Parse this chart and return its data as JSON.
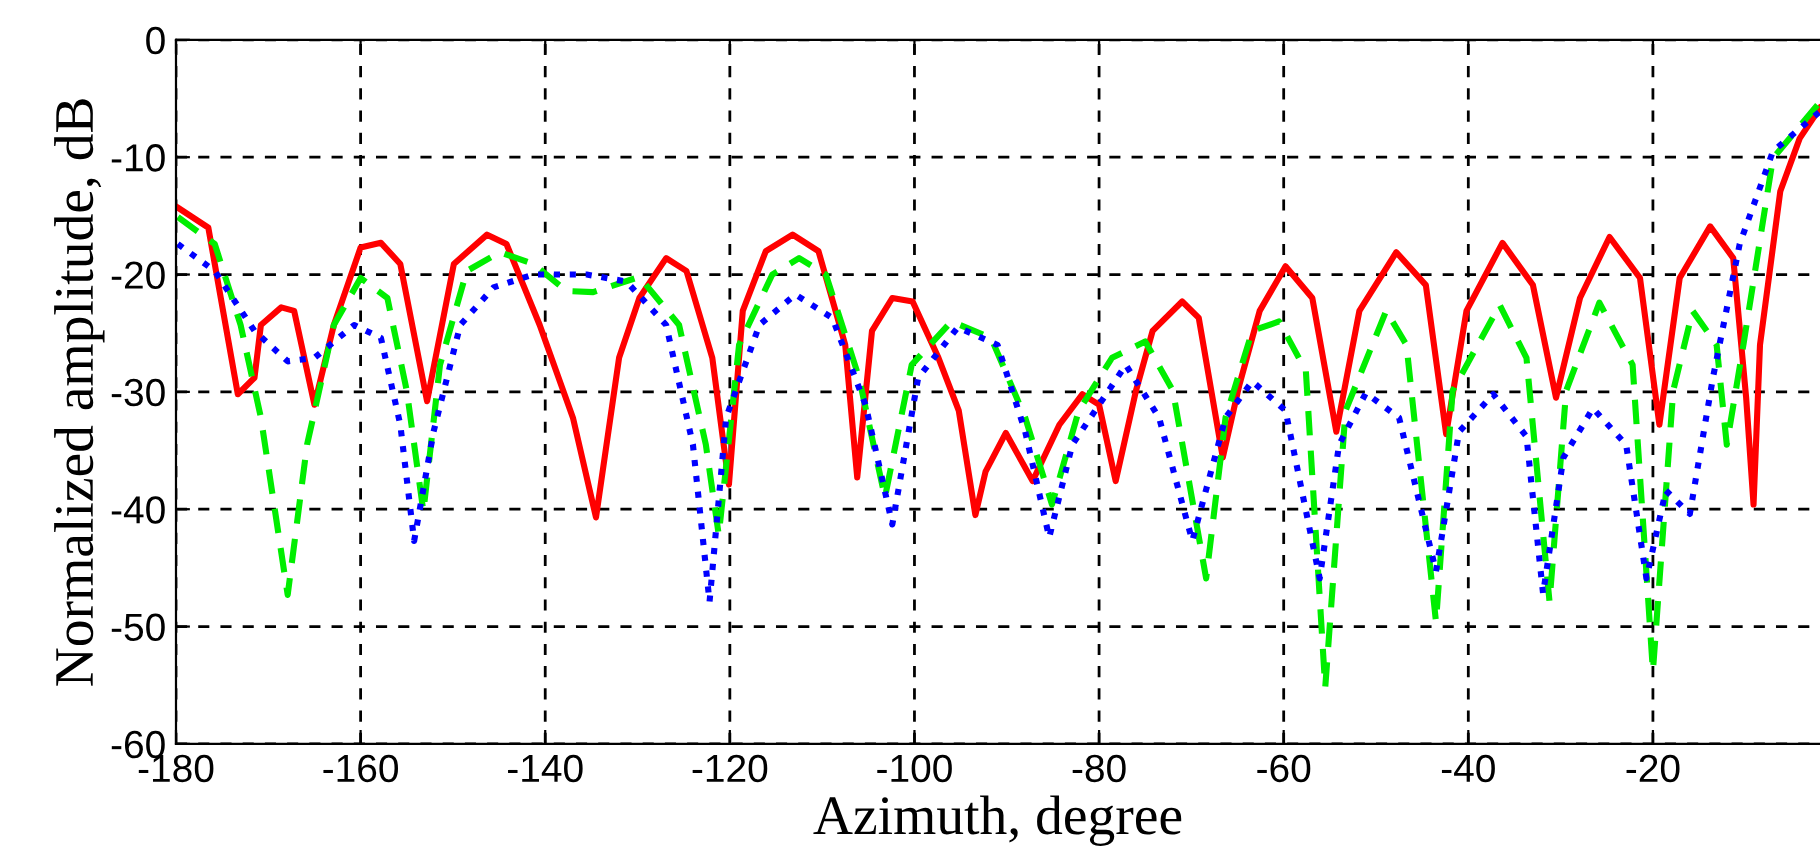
{
  "chart_data": {
    "type": "line",
    "xlabel": "Azimuth, degree",
    "ylabel": "Normalized amplitude, dB",
    "xlim": [
      -180,
      -1.9
    ],
    "ylim": [
      -60,
      0
    ],
    "xticks": [
      -180,
      -160,
      -140,
      -120,
      -100,
      -80,
      -60,
      -40,
      -20
    ],
    "yticks": [
      -60,
      -50,
      -40,
      -30,
      -20,
      -10,
      0
    ],
    "grid": true,
    "marker": "none",
    "series": [
      {
        "color": "#ff0000",
        "line_style": "solid",
        "x": [
          -179.8,
          -176.5,
          -173.3,
          -171.5,
          -170.8,
          -168.6,
          -167.2,
          -165,
          -162.9,
          -160,
          -157.8,
          -155.7,
          -152.8,
          -149.9,
          -146.3,
          -144.2,
          -140.6,
          -137,
          -134.5,
          -132,
          -129.8,
          -126.9,
          -124.7,
          -121.9,
          -120.1,
          -118.6,
          -116.1,
          -113.2,
          -110.4,
          -107.5,
          -106.2,
          -104.6,
          -102.4,
          -100.2,
          -97.4,
          -95.2,
          -93.4,
          -92.3,
          -90.1,
          -87.2,
          -84.3,
          -81.8,
          -80,
          -78.2,
          -76,
          -74.2,
          -71,
          -69.2,
          -66.6,
          -64.8,
          -62.6,
          -59.8,
          -56.9,
          -54.3,
          -51.8,
          -47.8,
          -44.6,
          -42.4,
          -40.2,
          -36.3,
          -33,
          -30.5,
          -27.9,
          -24.7,
          -21.4,
          -19.3,
          -17.1,
          -13.8,
          -11.3,
          -9.9,
          -9.1,
          -8.4,
          -6.2,
          -4.1,
          -1.9
        ],
        "values": [
          -14.3,
          -16,
          -30.2,
          -28.8,
          -24.3,
          -22.8,
          -23.1,
          -31.1,
          -24.3,
          -17.7,
          -17.3,
          -19.1,
          -30.8,
          -19.1,
          -16.6,
          -17.4,
          -24.3,
          -32.2,
          -40.7,
          -27.1,
          -22,
          -18.6,
          -19.7,
          -27.1,
          -37.9,
          -23.1,
          -18,
          -16.6,
          -18,
          -26,
          -37.3,
          -24.8,
          -22,
          -22.3,
          -27.1,
          -31.6,
          -40.5,
          -36.8,
          -33.5,
          -37.6,
          -32.8,
          -30.2,
          -31.1,
          -37.6,
          -29.9,
          -24.8,
          -22.3,
          -23.7,
          -35.6,
          -29.4,
          -23.1,
          -19.3,
          -22,
          -33.4,
          -23.1,
          -18.1,
          -20.9,
          -33.6,
          -23.1,
          -17.3,
          -20.9,
          -30.5,
          -22,
          -16.8,
          -20.3,
          -32.8,
          -20.3,
          -15.9,
          -18.6,
          -30.5,
          -39.6,
          -26,
          -12.9,
          -8.4,
          -5.8
        ]
      },
      {
        "color": "#00ee00",
        "line_style": "dashed",
        "x": [
          -179.8,
          -175.8,
          -173,
          -170.8,
          -167.9,
          -165.8,
          -162.9,
          -160,
          -157.1,
          -155,
          -153.2,
          -151.4,
          -148.5,
          -144.9,
          -141.3,
          -137.7,
          -134.8,
          -129.8,
          -125.5,
          -122.6,
          -121.2,
          -119,
          -115.4,
          -112.5,
          -109.6,
          -106,
          -103.2,
          -100.3,
          -96,
          -91.7,
          -88,
          -85.1,
          -82.2,
          -78.6,
          -75,
          -72,
          -68.4,
          -66.3,
          -63.4,
          -60.5,
          -57.6,
          -55.5,
          -53.3,
          -48.9,
          -46.7,
          -43.5,
          -41.7,
          -36.6,
          -33.7,
          -31.2,
          -29.4,
          -25.8,
          -22.2,
          -20,
          -17.8,
          -15.7,
          -13.1,
          -12,
          -10.2,
          -7,
          -1.9
        ],
        "values": [
          -15.1,
          -17.4,
          -24.3,
          -32.2,
          -47.3,
          -34.5,
          -24.3,
          -20.3,
          -22,
          -29.9,
          -40.2,
          -27.7,
          -19.7,
          -18.1,
          -19.1,
          -21.4,
          -21.5,
          -20.2,
          -24.3,
          -34.5,
          -42.2,
          -26,
          -20,
          -18.6,
          -20,
          -28.8,
          -39,
          -27.7,
          -24,
          -25.4,
          -32.2,
          -39.6,
          -31.6,
          -27.1,
          -25.7,
          -29.9,
          -45.9,
          -32.2,
          -24.8,
          -24,
          -28.2,
          -55.2,
          -31.6,
          -23.1,
          -26,
          -49.6,
          -29.9,
          -22.6,
          -27.1,
          -47.9,
          -29.9,
          -22.4,
          -27.7,
          -53.8,
          -29.9,
          -23.1,
          -26,
          -34.5,
          -26,
          -10.1,
          -5.3
        ]
      },
      {
        "color": "#0000ff",
        "line_style": "dotted",
        "x": [
          -179.8,
          -175.8,
          -171.5,
          -167.9,
          -165,
          -160.7,
          -157.8,
          -155.7,
          -154.2,
          -152.1,
          -149.2,
          -145.6,
          -141.3,
          -135.5,
          -131.2,
          -126.9,
          -124,
          -122.2,
          -120.4,
          -116.8,
          -112.9,
          -108.9,
          -105.3,
          -102.4,
          -99.6,
          -95.3,
          -91,
          -88,
          -85.4,
          -82.9,
          -77.1,
          -73.5,
          -69.9,
          -66.3,
          -63.4,
          -59.8,
          -56.1,
          -54,
          -51.1,
          -47.5,
          -43.5,
          -41,
          -37.3,
          -33.7,
          -31.9,
          -29.7,
          -26.5,
          -22.9,
          -20.7,
          -18.6,
          -16,
          -13.5,
          -10.6,
          -7,
          -1.9
        ],
        "values": [
          -17.4,
          -19.7,
          -24.8,
          -27.4,
          -27.1,
          -24.3,
          -25.4,
          -32.8,
          -42.7,
          -33.4,
          -24.3,
          -21.1,
          -20,
          -20,
          -20.6,
          -24.3,
          -34.5,
          -47.9,
          -32.2,
          -24.3,
          -21.7,
          -23.7,
          -31.1,
          -41.3,
          -28.8,
          -24.5,
          -26,
          -33.4,
          -42.4,
          -34.5,
          -27.7,
          -32.2,
          -42.7,
          -32.2,
          -29.1,
          -31.6,
          -45.9,
          -34.5,
          -30.1,
          -32.2,
          -45.3,
          -33.4,
          -30.2,
          -33.8,
          -47.2,
          -35.6,
          -31.4,
          -34.5,
          -45.9,
          -38.4,
          -40.4,
          -28.8,
          -17.4,
          -9.5,
          -6.1
        ]
      }
    ]
  }
}
